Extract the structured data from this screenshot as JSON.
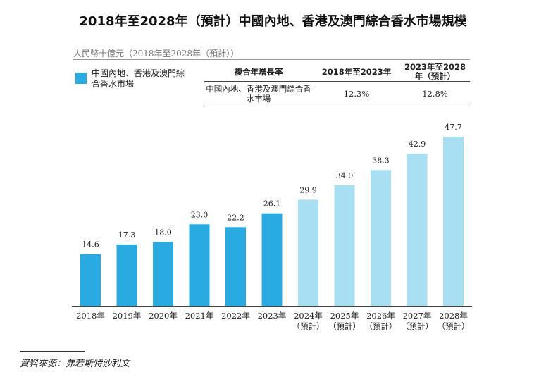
{
  "title": "2018年至2028年（預計）中國內地、香港及澳門綜合香水市場規模",
  "unit_label": "人民幣十億元（2018年至2028年（預計））",
  "legend": {
    "label": "中國內地、香港及澳門綜合香水市場",
    "color": "#29abe2"
  },
  "cagr_table": {
    "header": [
      "複合年增長率",
      "2018年至2023年",
      "2023年至2028年（預計）"
    ],
    "row": {
      "label": "中國內地、香港及澳門綜合香水市場",
      "values": [
        "12.3%",
        "12.8%"
      ]
    }
  },
  "source": "資料來源：弗若斯特沙利文",
  "chart_data": {
    "type": "bar",
    "categories": [
      "2018年",
      "2019年",
      "2020年",
      "2021年",
      "2022年",
      "2023年",
      "2024年（預計）",
      "2025年（預計）",
      "2026年（預計）",
      "2027年（預計）",
      "2028年（預計）"
    ],
    "category_lines": [
      [
        "2018年"
      ],
      [
        "2019年"
      ],
      [
        "2020年"
      ],
      [
        "2021年"
      ],
      [
        "2022年"
      ],
      [
        "2023年"
      ],
      [
        "2024年",
        "（預計）"
      ],
      [
        "2025年",
        "（預計）"
      ],
      [
        "2026年",
        "（預計）"
      ],
      [
        "2027年",
        "（預計）"
      ],
      [
        "2028年",
        "（預計）"
      ]
    ],
    "values": [
      14.6,
      17.3,
      18.0,
      23.0,
      22.2,
      26.1,
      29.9,
      34.0,
      38.3,
      42.9,
      47.7
    ],
    "value_labels": [
      "14.6",
      "17.3",
      "18.0",
      "23.0",
      "22.2",
      "26.1",
      "29.9",
      "34.0",
      "38.3",
      "42.9",
      "47.7"
    ],
    "ylim": [
      0,
      47.7
    ],
    "actual_color": "#29abe2",
    "forecast_color": "#a8dff3",
    "forecast_from_index": 6,
    "grid": false
  }
}
